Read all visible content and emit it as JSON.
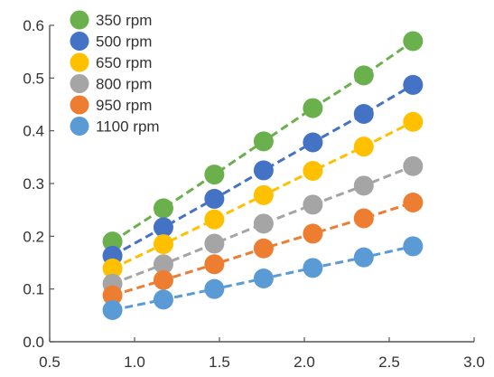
{
  "chart_data": {
    "type": "scatter",
    "title": "",
    "xlabel": "",
    "ylabel": "",
    "xlim": [
      0.5,
      3.0
    ],
    "ylim": [
      0.0,
      0.6
    ],
    "xticks": [
      "0.5",
      "1.0",
      "1.5",
      "2.0",
      "2.5",
      "3.0"
    ],
    "yticks": [
      "0.0",
      "0.1",
      "0.2",
      "0.3",
      "0.4",
      "0.5",
      "0.6"
    ],
    "grid": false,
    "legend_position": "top-left",
    "x": [
      0.87,
      1.17,
      1.47,
      1.76,
      2.05,
      2.35,
      2.64
    ],
    "series": [
      {
        "name": "350 rpm",
        "color": "#6ab04c",
        "values": [
          0.19,
          0.253,
          0.317,
          0.38,
          0.443,
          0.505,
          0.57
        ]
      },
      {
        "name": "500 rpm",
        "color": "#4472c4",
        "values": [
          0.163,
          0.217,
          0.271,
          0.325,
          0.378,
          0.432,
          0.487
        ]
      },
      {
        "name": "650 rpm",
        "color": "#ffc000",
        "values": [
          0.139,
          0.185,
          0.232,
          0.278,
          0.324,
          0.37,
          0.417
        ]
      },
      {
        "name": "800 rpm",
        "color": "#a5a5a5",
        "values": [
          0.11,
          0.147,
          0.186,
          0.224,
          0.26,
          0.296,
          0.333
        ]
      },
      {
        "name": "950 rpm",
        "color": "#ed7d31",
        "values": [
          0.088,
          0.117,
          0.147,
          0.177,
          0.205,
          0.234,
          0.264
        ]
      },
      {
        "name": "1100 rpm",
        "color": "#5b9bd5",
        "values": [
          0.06,
          0.08,
          0.1,
          0.12,
          0.14,
          0.16,
          0.181
        ]
      }
    ]
  }
}
